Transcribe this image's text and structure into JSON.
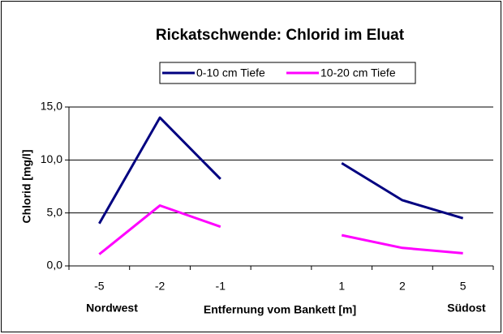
{
  "chart_data": {
    "type": "line",
    "title": "Rickatschwende: Chlorid im Eluat",
    "x_label": "Entfernung vom Bankett [m]",
    "y_label": "Chlorid [mg/l]",
    "annotations": [
      "Nordwest",
      "Südost"
    ],
    "categories": [
      "-5",
      "-2",
      "-1",
      null,
      "1",
      "2",
      "5"
    ],
    "series": [
      {
        "name": "0-10 cm Tiefe",
        "color": "#000080",
        "values": [
          4.0,
          14.0,
          8.2,
          null,
          9.7,
          6.2,
          4.5
        ]
      },
      {
        "name": "10-20 cm Tiefe",
        "color": "#ff00ff",
        "values": [
          1.1,
          5.7,
          3.7,
          null,
          2.9,
          1.7,
          1.2
        ]
      }
    ],
    "ylim": [
      0,
      15
    ],
    "yticks": [
      {
        "value": 0,
        "label": "0,0"
      },
      {
        "value": 5,
        "label": "5,0"
      },
      {
        "value": 10,
        "label": "10,0"
      },
      {
        "value": 15,
        "label": "15,0"
      }
    ],
    "grid": true,
    "legend": "top"
  }
}
